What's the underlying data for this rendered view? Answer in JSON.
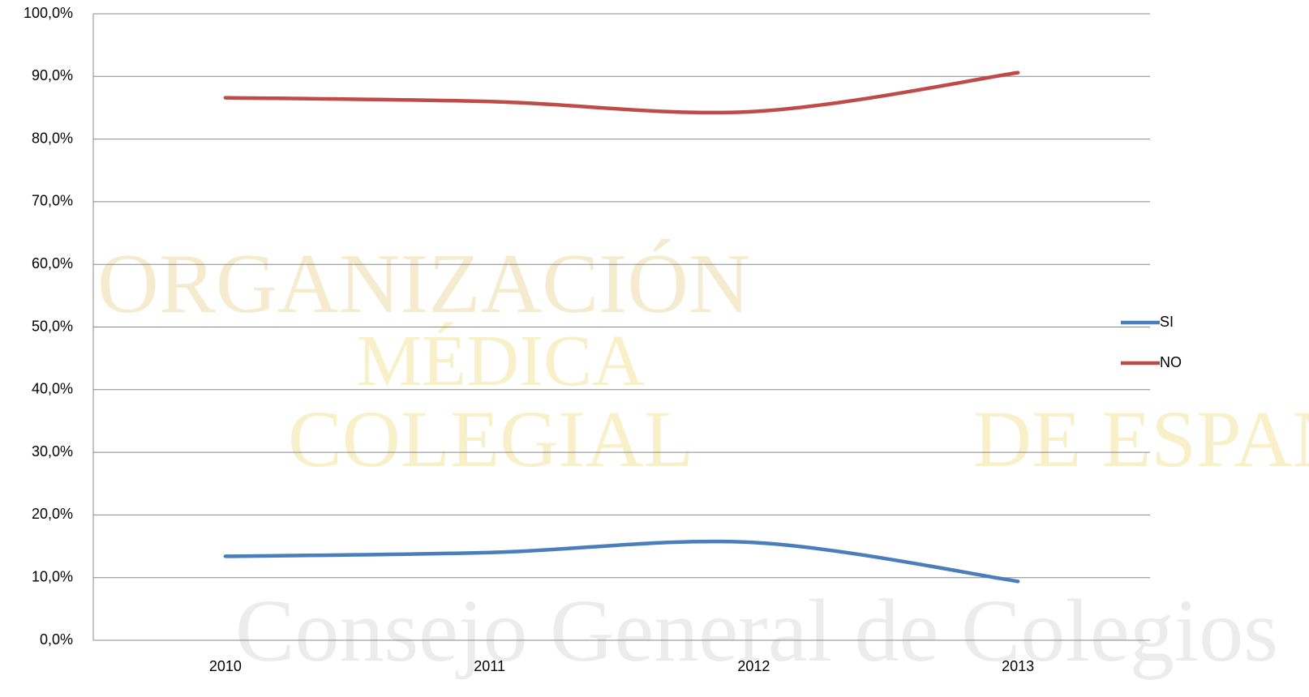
{
  "chart_data": {
    "type": "line",
    "categories": [
      "2010",
      "2011",
      "2012",
      "2013"
    ],
    "series": [
      {
        "name": "SI",
        "color": "#4a7ebb",
        "values": [
          13.4,
          14.0,
          15.6,
          9.4
        ]
      },
      {
        "name": "NO",
        "color": "#be4b48",
        "values": [
          86.6,
          86.0,
          84.4,
          90.6
        ]
      }
    ],
    "ylim": [
      0,
      100
    ],
    "yticks": [
      {
        "value": 0,
        "label": "0,0%"
      },
      {
        "value": 10,
        "label": "10,0%"
      },
      {
        "value": 20,
        "label": "20,0%"
      },
      {
        "value": 30,
        "label": "30,0%"
      },
      {
        "value": 40,
        "label": "40,0%"
      },
      {
        "value": 50,
        "label": "50,0%"
      },
      {
        "value": 60,
        "label": "60,0%"
      },
      {
        "value": 70,
        "label": "70,0%"
      },
      {
        "value": 80,
        "label": "80,0%"
      },
      {
        "value": 90,
        "label": "90,0%"
      },
      {
        "value": 100,
        "label": "100,0%"
      }
    ],
    "grid": true,
    "legend": "right",
    "smooth": true
  },
  "watermark": [
    "ORGANIZACIÓN",
    "MÉDICA",
    "COLEGIAL",
    "DE ESPAÑA",
    "Consejo General de Colegios"
  ]
}
